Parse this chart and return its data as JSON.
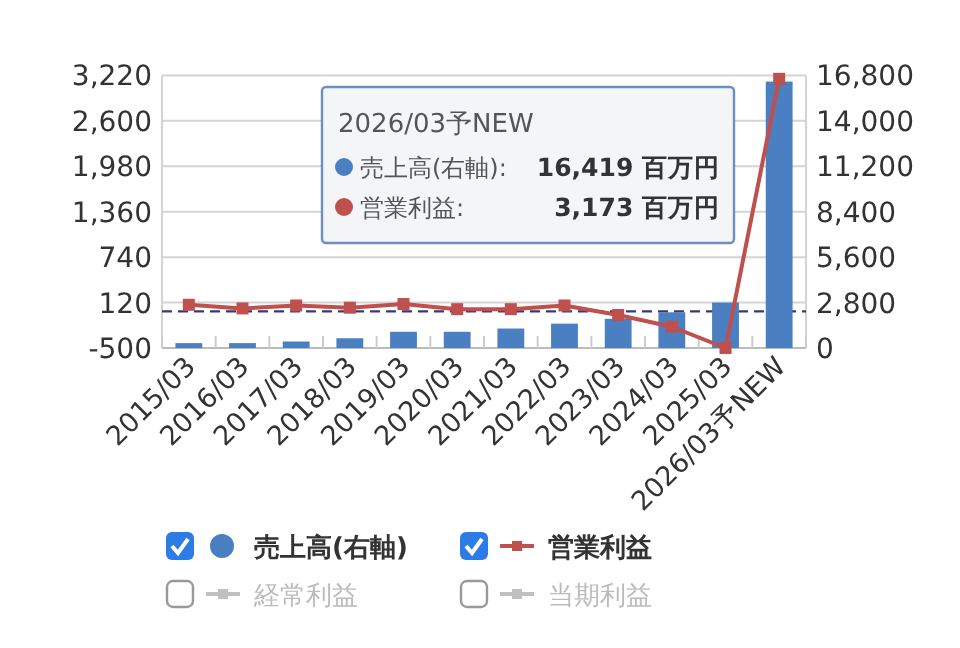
{
  "chart_data": {
    "type": "bar",
    "categories": [
      "2015/03",
      "2016/03",
      "2017/03",
      "2018/03",
      "2019/03",
      "2020/03",
      "2021/03",
      "2022/03",
      "2023/03",
      "2024/03",
      "2025/03",
      "2026/03予NEW"
    ],
    "series": [
      {
        "name": "売上高(右軸)",
        "axis": "y2",
        "color": "#4a7fc1",
        "values": [
          300,
          300,
          400,
          600,
          1000,
          1000,
          1200,
          1500,
          1800,
          2200,
          2800,
          16419
        ]
      },
      {
        "name": "営業利益",
        "type": "line",
        "color": "#c0504d",
        "values": [
          90,
          40,
          80,
          50,
          100,
          30,
          30,
          80,
          -50,
          -210,
          -500,
          3173
        ]
      },
      {
        "name": "経常利益",
        "type": "line",
        "color": "#c0c0c0",
        "values": [
          null,
          null,
          null,
          null,
          null,
          null,
          null,
          null,
          null,
          null,
          null,
          null
        ]
      },
      {
        "name": "当期利益",
        "type": "line",
        "color": "#c0c0c0",
        "values": [
          null,
          null,
          null,
          null,
          null,
          null,
          null,
          null,
          null,
          null,
          null,
          null
        ]
      }
    ],
    "ylim": [
      -500,
      3220
    ],
    "yticks": [
      {
        "value": -500,
        "label": "-500"
      },
      {
        "value": 120,
        "label": "120"
      },
      {
        "value": 740,
        "label": "740"
      },
      {
        "value": 1360,
        "label": "1,360"
      },
      {
        "value": 1980,
        "label": "1,980"
      },
      {
        "value": 2600,
        "label": "2,600"
      },
      {
        "value": 3220,
        "label": "3,220"
      }
    ],
    "y2lim": [
      0,
      16800
    ],
    "y2ticks": [
      {
        "value": 0,
        "label": "0"
      },
      {
        "value": 2800,
        "label": "2,800"
      },
      {
        "value": 5600,
        "label": "5,600"
      },
      {
        "value": 8400,
        "label": "8,400"
      },
      {
        "value": 11200,
        "label": "11,200"
      },
      {
        "value": 14000,
        "label": "14,000"
      },
      {
        "value": 16800,
        "label": "16,800"
      }
    ],
    "ref_lines": [
      {
        "axis": "y",
        "value": 0,
        "color": "#3a3a6a",
        "line_style": "dashed"
      }
    ],
    "annotations": [
      "2026/03予NEW",
      "売上高(右軸):",
      "16,419 百万円",
      "営業利益:",
      "3,173 百万円"
    ],
    "grid": "y",
    "legend": "bottom",
    "marker": "square"
  }
}
